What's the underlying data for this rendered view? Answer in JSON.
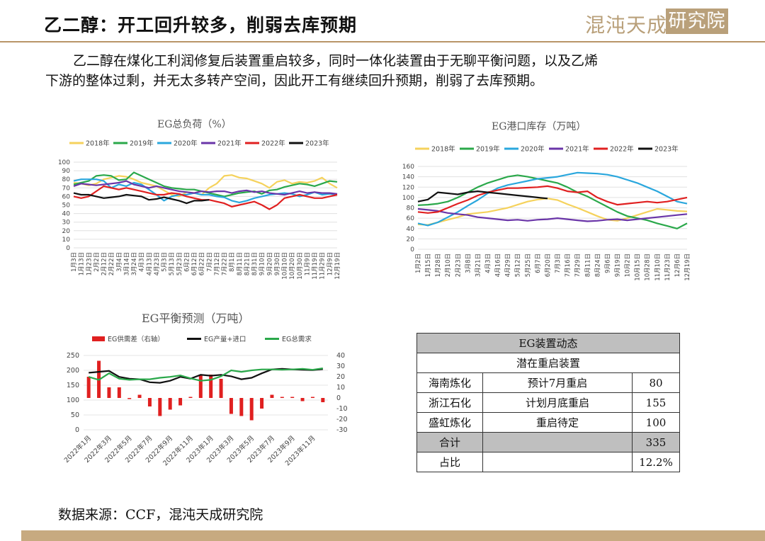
{
  "header": {
    "title": "乙二醇：开工回升较多，削弱去库预期",
    "logo_brand": "混沌天成",
    "logo_box": "研究院"
  },
  "paragraph": {
    "line1": "乙二醇在煤化工利润修复后装置重启较多，同时一体化装置由于无聊平衡问题，以及乙烯",
    "line2": "下游的整体过剩，并无太多转产空间，因此开工有继续回升预期，削弱了去库预期。"
  },
  "source": "数据来源：CCF，混沌天成研究院",
  "colors": {
    "2018年": "#f5d25c",
    "2019年": "#2aa84a",
    "2020年": "#2aa7dd",
    "2021年": "#6a35a8",
    "2022年": "#e02020",
    "2023年": "#111111",
    "accent": "#b9a07a"
  },
  "chart_data": [
    {
      "id": "load",
      "type": "line",
      "title": "EG总负荷（%）",
      "ylim": [
        0,
        100
      ],
      "yticks": [
        "0",
        "10",
        "20",
        "30",
        "40",
        "50",
        "60",
        "70",
        "80",
        "90",
        "100"
      ],
      "xlabels": [
        "1月3日",
        "1月13日",
        "1月23日",
        "2月2日",
        "2月12日",
        "2月22日",
        "3月4日",
        "3月14日",
        "3月24日",
        "4月3日",
        "4月13日",
        "4月23日",
        "5月3日",
        "5月13日",
        "5月23日",
        "6月2日",
        "6月12日",
        "6月22日",
        "7月2日",
        "7月12日",
        "7月22日",
        "8月1日",
        "8月11日",
        "8月21日",
        "8月31日",
        "9月10日",
        "9月20日",
        "9月30日",
        "10月10日",
        "10月20日",
        "10月30日",
        "11月9日",
        "11月19日",
        "11月29日",
        "12月9日",
        "12月19日"
      ],
      "series": [
        {
          "name": "2018年",
          "values": [
            76,
            75,
            73,
            75,
            80,
            82,
            84,
            83,
            80,
            76,
            74,
            72,
            67,
            62,
            60,
            65,
            64,
            62,
            70,
            75,
            84,
            85,
            82,
            81,
            78,
            75,
            70,
            77,
            79,
            75,
            77,
            76,
            78,
            82,
            75,
            70
          ]
        },
        {
          "name": "2019年",
          "values": [
            74,
            76,
            78,
            84,
            85,
            84,
            79,
            80,
            88,
            84,
            80,
            76,
            72,
            70,
            69,
            68,
            68,
            66,
            64,
            62,
            60,
            62,
            64,
            65,
            66,
            63,
            67,
            68,
            71,
            73,
            75,
            74,
            72,
            75,
            78,
            77
          ]
        },
        {
          "name": "2020年",
          "values": [
            78,
            80,
            80,
            80,
            78,
            70,
            74,
            72,
            76,
            74,
            68,
            62,
            55,
            60,
            62,
            62,
            64,
            62,
            62,
            60,
            59,
            55,
            53,
            55,
            58,
            60,
            62,
            63,
            64,
            63,
            60,
            62,
            65,
            62,
            63,
            62
          ]
        },
        {
          "name": "2021年",
          "values": [
            72,
            75,
            74,
            73,
            74,
            75,
            76,
            78,
            74,
            72,
            70,
            72,
            70,
            68,
            66,
            65,
            64,
            66,
            65,
            66,
            66,
            64,
            66,
            67,
            65,
            66,
            64,
            63,
            62,
            64,
            66,
            64,
            65,
            64,
            64,
            63
          ]
        },
        {
          "name": "2022年",
          "values": [
            60,
            58,
            60,
            66,
            72,
            70,
            68,
            70,
            68,
            66,
            64,
            62,
            62,
            64,
            63,
            60,
            58,
            56,
            56,
            54,
            52,
            48,
            50,
            52,
            54,
            50,
            45,
            50,
            58,
            60,
            62,
            60,
            58,
            58,
            60,
            62
          ]
        },
        {
          "name": "2023年",
          "values": [
            64,
            62,
            62,
            60,
            58,
            59,
            60,
            62,
            61,
            60,
            56,
            57,
            59,
            57,
            55,
            52,
            55,
            55,
            56
          ]
        }
      ]
    },
    {
      "id": "inventory",
      "type": "line",
      "title": "EG港口库存（万吨）",
      "ylim": [
        0,
        160
      ],
      "yticks": [
        "0",
        "20",
        "40",
        "60",
        "80",
        "100",
        "120",
        "140",
        "160"
      ],
      "xlabels": [
        "1月2日",
        "1月15日",
        "1月28日",
        "2月10日",
        "2月23日",
        "3月8日",
        "3月21日",
        "4月3日",
        "4月16日",
        "4月29日",
        "5月12日",
        "5月25日",
        "6月7日",
        "6月20日",
        "7月3日",
        "7月16日",
        "7月29日",
        "8月11日",
        "8月24日",
        "9月6日",
        "9月19日",
        "10月2日",
        "10月15日",
        "10月28日",
        "11月10日",
        "11月23日",
        "12月6日",
        "12月19日"
      ],
      "series": [
        {
          "name": "2018年",
          "values": [
            48,
            47,
            52,
            57,
            62,
            68,
            70,
            72,
            76,
            80,
            86,
            92,
            96,
            98,
            95,
            87,
            80,
            72,
            64,
            57,
            55,
            60,
            66,
            72,
            78,
            76,
            74,
            73
          ]
        },
        {
          "name": "2019年",
          "values": [
            85,
            86,
            88,
            92,
            100,
            110,
            120,
            128,
            134,
            140,
            143,
            140,
            136,
            132,
            128,
            120,
            110,
            102,
            92,
            82,
            72,
            64,
            60,
            56,
            50,
            45,
            40,
            50
          ]
        },
        {
          "name": "2020年",
          "values": [
            50,
            46,
            52,
            62,
            72,
            84,
            95,
            108,
            118,
            124,
            128,
            132,
            136,
            138,
            140,
            144,
            148,
            147,
            146,
            144,
            140,
            134,
            128,
            120,
            112,
            102,
            92,
            88
          ]
        },
        {
          "name": "2021年",
          "values": [
            78,
            76,
            74,
            70,
            68,
            66,
            62,
            60,
            58,
            56,
            57,
            55,
            57,
            58,
            60,
            58,
            56,
            54,
            55,
            57,
            58,
            56,
            58,
            60,
            62,
            64,
            66,
            68
          ]
        },
        {
          "name": "2022年",
          "values": [
            72,
            70,
            72,
            80,
            88,
            95,
            104,
            110,
            114,
            118,
            118,
            119,
            120,
            122,
            118,
            112,
            110,
            112,
            100,
            92,
            86,
            88,
            90,
            92,
            90,
            92,
            96,
            100
          ]
        },
        {
          "name": "2023年",
          "values": [
            92,
            96,
            110,
            108,
            106,
            110,
            112,
            110,
            108,
            106,
            104,
            102,
            100,
            98
          ]
        }
      ]
    },
    {
      "id": "balance",
      "type": "bar+line",
      "title": "EG平衡预测（万吨）",
      "ylim_left": [
        0,
        250
      ],
      "ylim_right": [
        -30,
        40
      ],
      "yticks_left": [
        "0",
        "50",
        "100",
        "150",
        "200",
        "250"
      ],
      "yticks_right": [
        "-30",
        "-20",
        "-10",
        "0",
        "10",
        "20",
        "30",
        "40"
      ],
      "xlabels": [
        "2022年1月",
        "2022年3月",
        "2022年5月",
        "2022年7月",
        "2022年9月",
        "2022年11月",
        "2023年1月",
        "2023年3月",
        "2023年5月",
        "2023年7月",
        "2023年9月",
        "2023年11月"
      ],
      "legend": [
        "EG供需差（右轴）",
        "EG产量+进口",
        "EG总需求"
      ],
      "bar_color": "#e02020",
      "line_colors": [
        "#111111",
        "#2aa84a"
      ],
      "bars": [
        20,
        35,
        10,
        10,
        -1,
        3,
        -8,
        -17,
        -11,
        -7,
        1,
        21,
        22,
        18,
        -15,
        -17,
        -21,
        -10,
        3,
        1,
        1,
        -3,
        1,
        -4
      ],
      "supply": [
        192,
        195,
        198,
        178,
        172,
        170,
        160,
        158,
        165,
        178,
        172,
        185,
        182,
        185,
        180,
        170,
        175,
        190,
        203,
        205,
        203,
        202,
        201,
        204
      ],
      "demand": [
        178,
        168,
        190,
        172,
        168,
        170,
        170,
        175,
        178,
        183,
        173,
        165,
        168,
        180,
        200,
        195,
        200,
        203,
        203,
        202,
        203,
        205,
        202,
        207
      ]
    }
  ],
  "table": {
    "title": "EG装置动态",
    "subtitle": "潜在重启装置",
    "rows": [
      {
        "name": "海南炼化",
        "status": "预计7月重启",
        "value": "80"
      },
      {
        "name": "浙江石化",
        "status": "计划月底重启",
        "value": "155"
      },
      {
        "name": "盛虹炼化",
        "status": "重启待定",
        "value": "100"
      }
    ],
    "total_label": "合计",
    "total_value": "335",
    "share_label": "占比",
    "share_value": "12.2%"
  }
}
